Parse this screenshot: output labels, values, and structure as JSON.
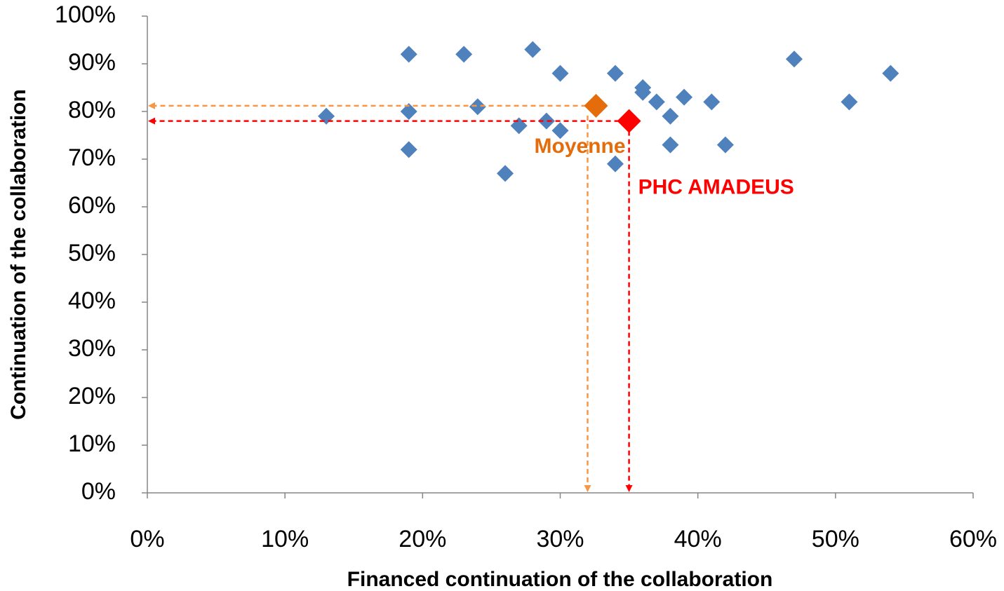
{
  "chart_data": {
    "type": "scatter",
    "xlabel": "Financed continuation of the collaboration",
    "ylabel": "Continuation of the collaboration",
    "xlim": [
      0,
      60
    ],
    "ylim": [
      0,
      100
    ],
    "xticks": [
      {
        "value": 0,
        "label": "0%"
      },
      {
        "value": 10,
        "label": "10%"
      },
      {
        "value": 20,
        "label": "20%"
      },
      {
        "value": 30,
        "label": "30%"
      },
      {
        "value": 40,
        "label": "40%"
      },
      {
        "value": 50,
        "label": "50%"
      },
      {
        "value": 60,
        "label": "60%"
      }
    ],
    "yticks": [
      {
        "value": 0,
        "label": "0%"
      },
      {
        "value": 10,
        "label": "10%"
      },
      {
        "value": 20,
        "label": "20%"
      },
      {
        "value": 30,
        "label": "30%"
      },
      {
        "value": 40,
        "label": "40%"
      },
      {
        "value": 50,
        "label": "50%"
      },
      {
        "value": 60,
        "label": "60%"
      },
      {
        "value": 70,
        "label": "70%"
      },
      {
        "value": 80,
        "label": "80%"
      },
      {
        "value": 90,
        "label": "90%"
      },
      {
        "value": 100,
        "label": "100%"
      }
    ],
    "series": [
      {
        "color": "#4f81bd",
        "x": [
          13,
          19,
          19,
          19,
          23,
          24,
          26,
          27,
          28,
          29,
          30,
          30,
          34,
          34,
          36,
          36,
          37,
          38,
          38,
          39,
          41,
          42,
          47,
          51,
          54
        ],
        "values": [
          79,
          92,
          80,
          72,
          92,
          81,
          67,
          77,
          93,
          78,
          88,
          76,
          88,
          69,
          85,
          84,
          82,
          79,
          73,
          83,
          82,
          73,
          91,
          82,
          88
        ]
      }
    ],
    "highlights": [
      {
        "label": "Moyenne",
        "x": 32.6,
        "y": 81.2,
        "color": "#e46c0a",
        "line_color": "#f79646"
      },
      {
        "label": "PHC AMADEUS",
        "x": 35,
        "y": 78,
        "color": "#ff0000",
        "line_color": "#ff0000"
      }
    ]
  }
}
